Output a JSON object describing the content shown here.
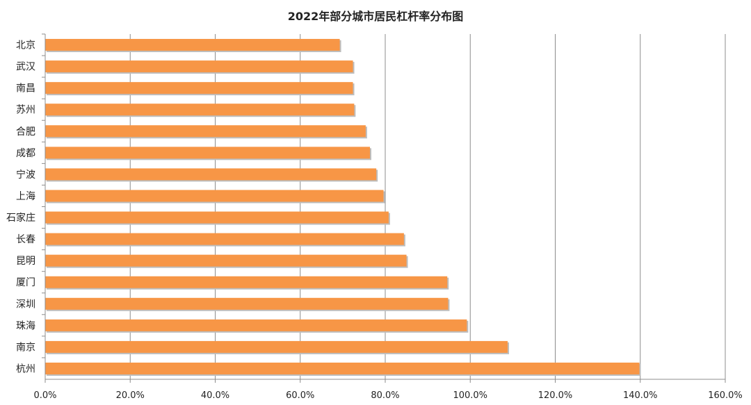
{
  "chart_data": {
    "type": "bar",
    "orientation": "horizontal",
    "title": "2022年部分城市居民杠杆率分布图",
    "xlabel": "",
    "ylabel": "",
    "categories": [
      "北京",
      "武汉",
      "南昌",
      "苏州",
      "合肥",
      "成都",
      "宁波",
      "上海",
      "石家庄",
      "长春",
      "昆明",
      "厦门",
      "深圳",
      "珠海",
      "南京",
      "杭州"
    ],
    "series": [
      {
        "values": [
          69.3,
          72.4,
          72.4,
          72.7,
          75.4,
          76.4,
          77.9,
          79.6,
          80.8,
          84.4,
          85.0,
          94.6,
          94.8,
          99.2,
          108.8,
          139.8
        ],
        "color": "#F79646"
      }
    ],
    "xlim": [
      0,
      160
    ],
    "xticks": [
      0,
      20,
      40,
      60,
      80,
      100,
      120,
      140,
      160
    ],
    "xtick_labels": [
      "0.0%",
      "20.0%",
      "40.0%",
      "60.0%",
      "80.0%",
      "100.0%",
      "120.0%",
      "140.0%",
      "160.0%"
    ],
    "grid": true,
    "legend": "none"
  }
}
